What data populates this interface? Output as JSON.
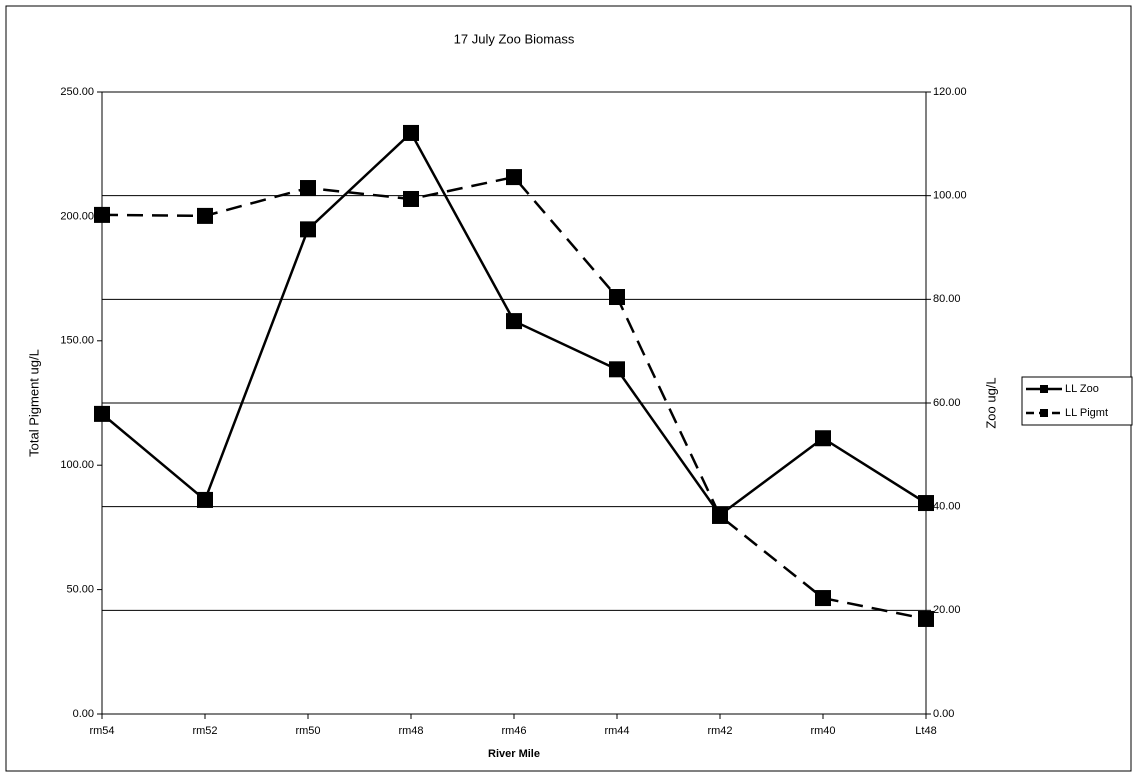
{
  "chart_data": {
    "type": "line",
    "title": "17 July Zoo Biomass",
    "x_label": "River Mile",
    "y_label": "Total Pigment ug/L",
    "y2_label": "Zoo ug/L",
    "categories": [
      "rm54",
      "rm52",
      "rm50",
      "rm48",
      "rm46",
      "rm44",
      "rm42",
      "rm40",
      "Lt48"
    ],
    "series": [
      {
        "name": "LL Zoo",
        "color": "#000000",
        "line_style": "solid",
        "axis": "y2",
        "values": [
          57.9,
          41.3,
          93.5,
          112.1,
          75.8,
          66.5,
          38.4,
          53.2,
          40.7
        ]
      },
      {
        "name": "LL Pigmt",
        "color": "#000000",
        "line_style": "dashed",
        "values": [
          200.6,
          200.2,
          211.4,
          207.0,
          215.8,
          167.6,
          79.6,
          46.6,
          38.2
        ]
      }
    ],
    "ylim": [
      0,
      250
    ],
    "yticks": [
      {
        "value": 0,
        "label": "0.00"
      },
      {
        "value": 50,
        "label": "50.00"
      },
      {
        "value": 100,
        "label": "100.00"
      },
      {
        "value": 150,
        "label": "150.00"
      },
      {
        "value": 200,
        "label": "200.00"
      },
      {
        "value": 250,
        "label": "250.00"
      }
    ],
    "y2lim": [
      0,
      120
    ],
    "y2ticks": [
      {
        "value": 0,
        "label": "0.00"
      },
      {
        "value": 20,
        "label": "20.00"
      },
      {
        "value": 40,
        "label": "40.00"
      },
      {
        "value": 60,
        "label": "60.00"
      },
      {
        "value": 80,
        "label": "80.00"
      },
      {
        "value": 100,
        "label": "100.00"
      },
      {
        "value": 120,
        "label": "120.00"
      }
    ],
    "grid": "y2",
    "legend": "right"
  }
}
